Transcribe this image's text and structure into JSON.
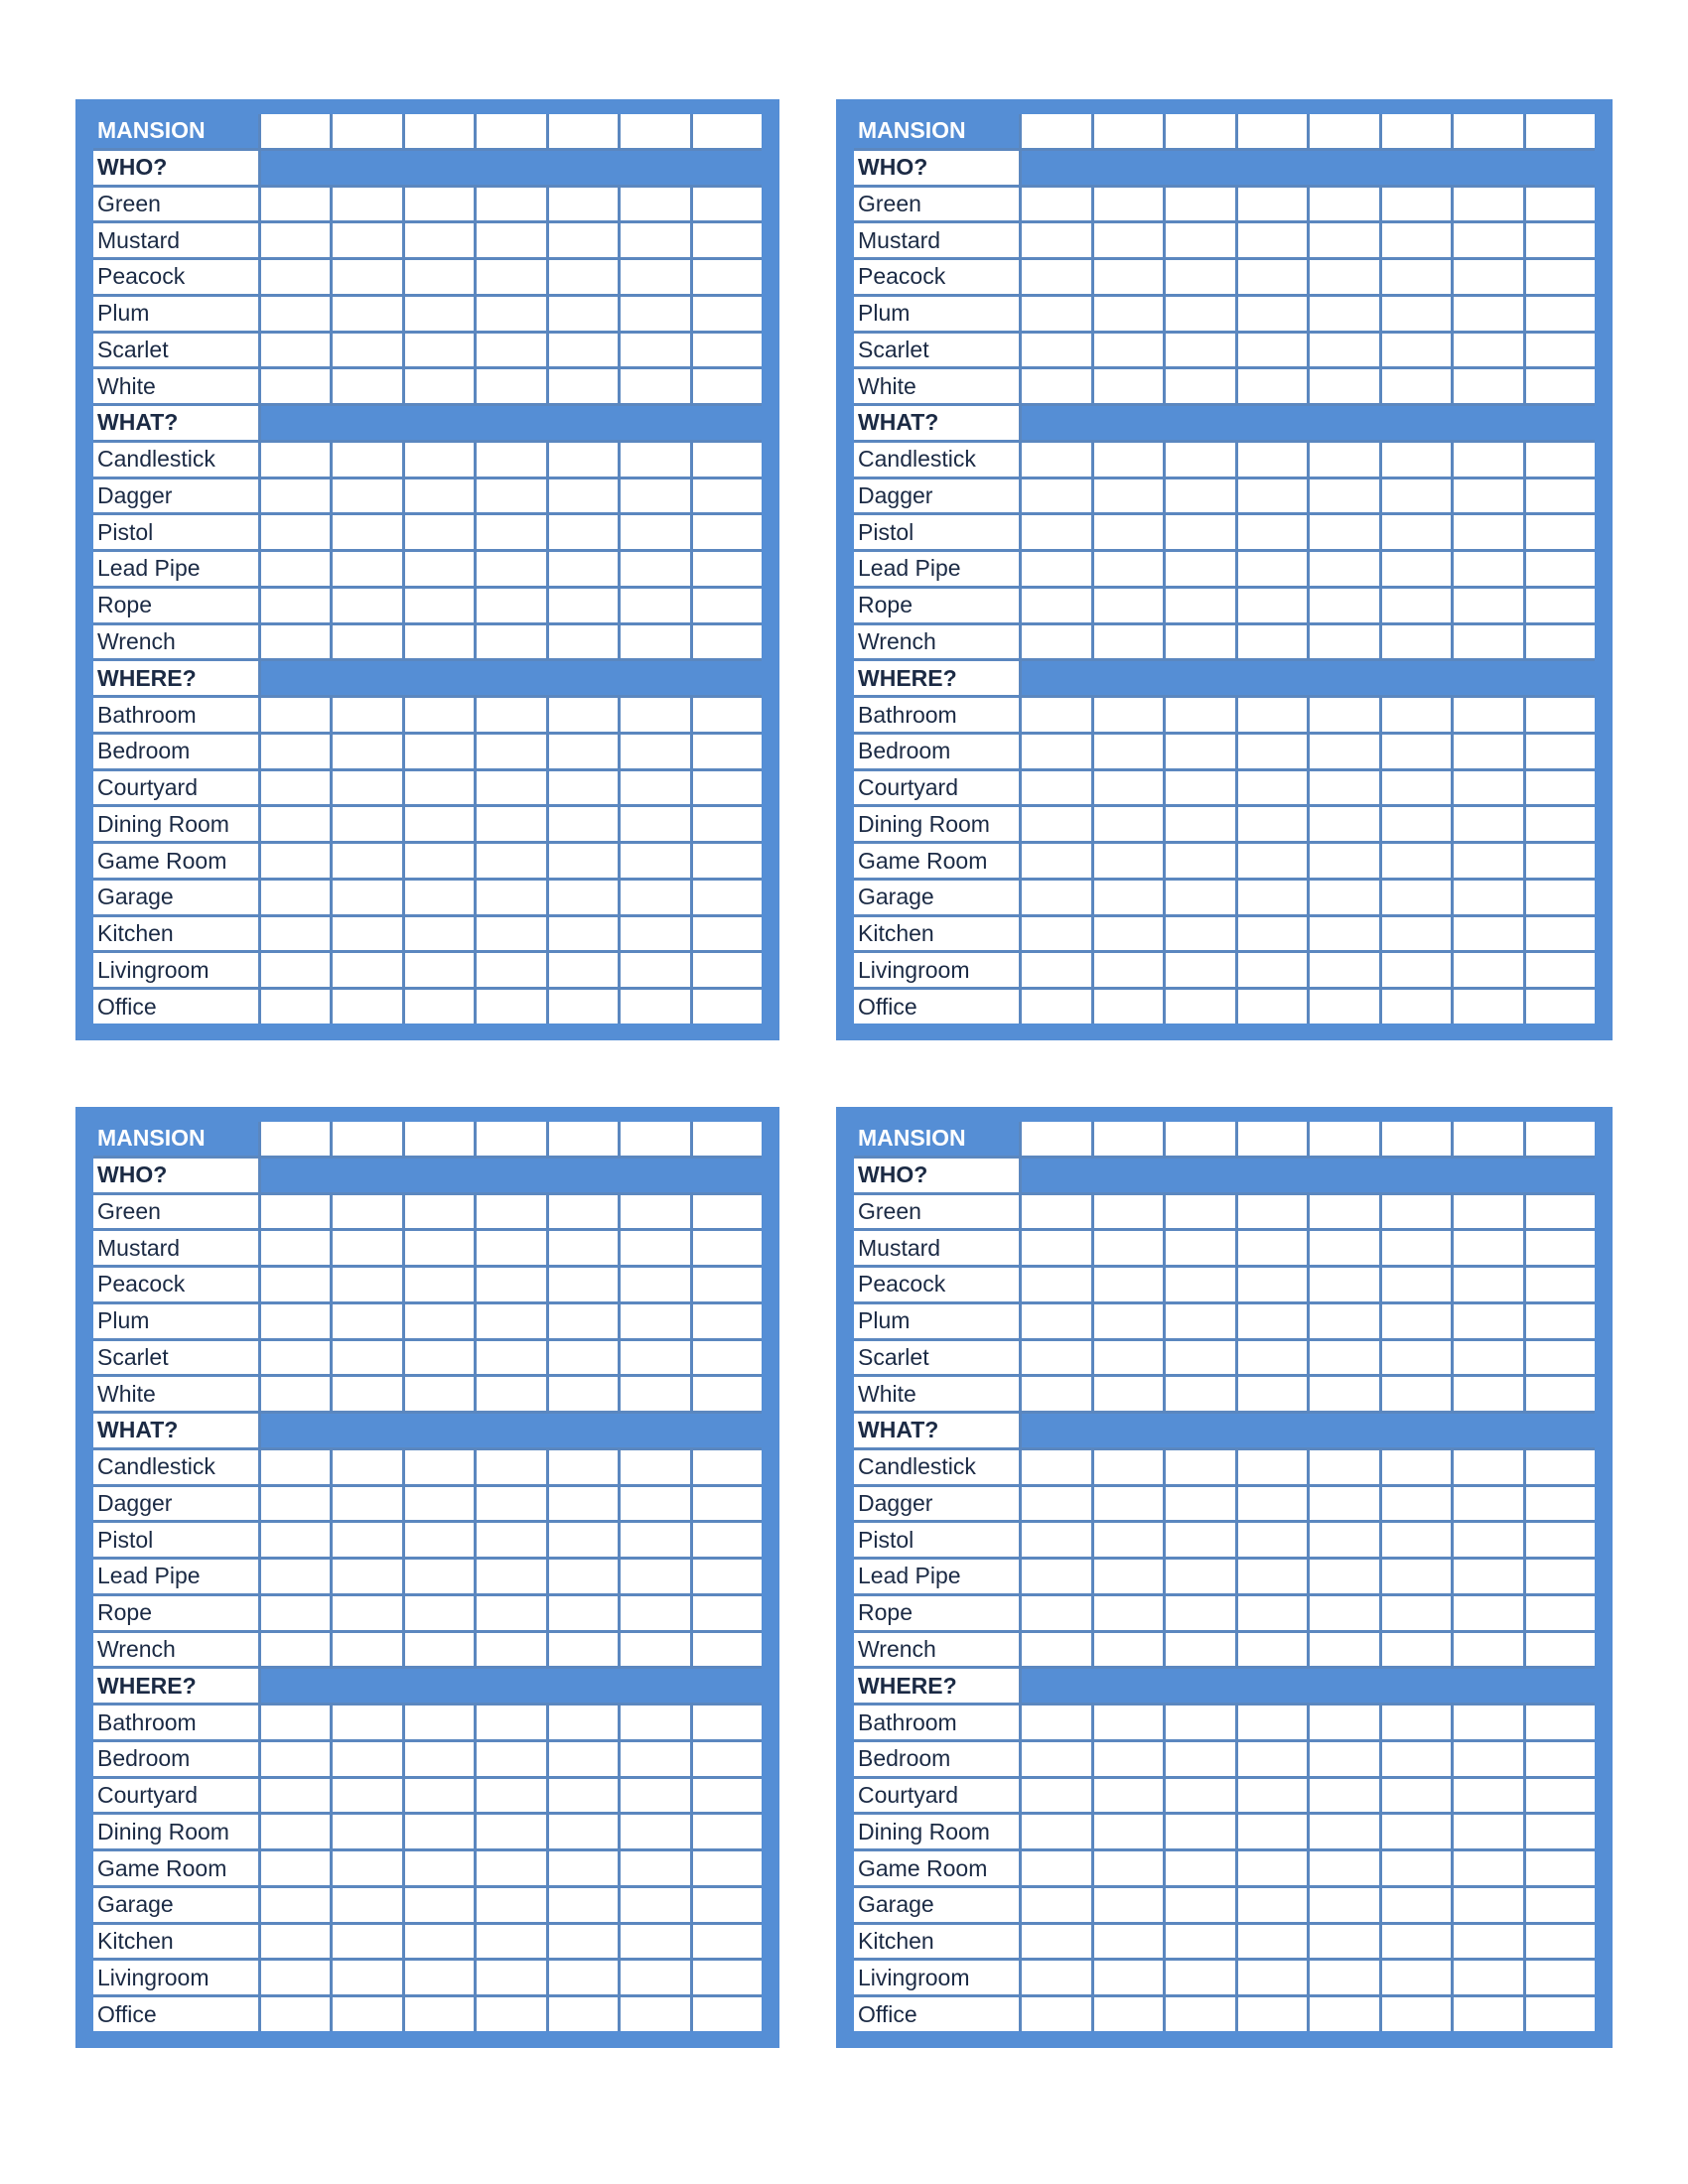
{
  "colors": {
    "panel": "#558ed5",
    "grid_line": "#5b87bf",
    "text": "#1b2a44"
  },
  "panels": [
    {
      "title": "MANSION",
      "checkbox_columns": 7
    },
    {
      "title": "MANSION",
      "checkbox_columns": 8
    },
    {
      "title": "MANSION",
      "checkbox_columns": 7
    },
    {
      "title": "MANSION",
      "checkbox_columns": 8
    }
  ],
  "sections": [
    {
      "heading": "WHO?",
      "items": [
        "Green",
        "Mustard",
        "Peacock",
        "Plum",
        "Scarlet",
        "White"
      ]
    },
    {
      "heading": "WHAT?",
      "items": [
        "Candlestick",
        "Dagger",
        "Pistol",
        "Lead Pipe",
        "Rope",
        "Wrench"
      ]
    },
    {
      "heading": "WHERE?",
      "items": [
        "Bathroom",
        "Bedroom",
        "Courtyard",
        "Dining Room",
        "Game Room",
        "Garage",
        "Kitchen",
        "Livingroom",
        "Office"
      ]
    }
  ]
}
